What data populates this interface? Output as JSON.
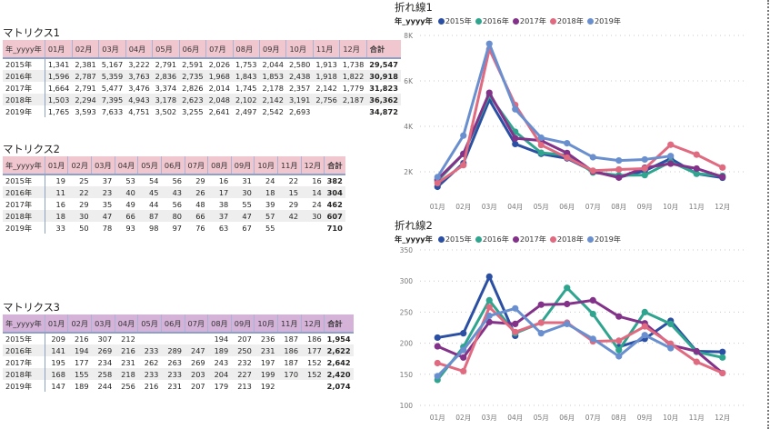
{
  "matrices": [
    {
      "title": "マトリクス1",
      "row_header": "年_yyyy年",
      "columns": [
        "01月",
        "02月",
        "03月",
        "04月",
        "05月",
        "06月",
        "07月",
        "08月",
        "09月",
        "10月",
        "11月",
        "12月",
        "合計"
      ],
      "rows": [
        {
          "label": "2015年",
          "values": [
            "1,341",
            "2,381",
            "5,167",
            "3,222",
            "2,791",
            "2,591",
            "2,026",
            "1,753",
            "2,044",
            "2,580",
            "1,913",
            "1,738"
          ],
          "total": "29,547"
        },
        {
          "label": "2016年",
          "values": [
            "1,596",
            "2,787",
            "5,359",
            "3,763",
            "2,836",
            "2,735",
            "1,968",
            "1,843",
            "1,853",
            "2,438",
            "1,918",
            "1,822"
          ],
          "total": "30,918"
        },
        {
          "label": "2017年",
          "values": [
            "1,664",
            "2,791",
            "5,477",
            "3,476",
            "3,374",
            "2,826",
            "2,014",
            "1,745",
            "2,178",
            "2,357",
            "2,142",
            "1,779"
          ],
          "total": "31,823"
        },
        {
          "label": "2018年",
          "values": [
            "1,503",
            "2,294",
            "7,395",
            "4,943",
            "3,178",
            "2,623",
            "2,048",
            "2,102",
            "2,142",
            "3,191",
            "2,756",
            "2,187"
          ],
          "total": "36,362"
        },
        {
          "label": "2019年",
          "values": [
            "1,765",
            "3,593",
            "7,633",
            "4,751",
            "3,502",
            "3,255",
            "2,641",
            "2,497",
            "2,542",
            "2,693",
            "",
            ""
          ],
          "total": "34,872"
        }
      ]
    },
    {
      "title": "マトリクス2",
      "row_header": "年_yyyy年",
      "columns": [
        "01月",
        "02月",
        "03月",
        "04月",
        "05月",
        "06月",
        "07月",
        "08月",
        "09月",
        "10月",
        "11月",
        "12月",
        "合計"
      ],
      "rows": [
        {
          "label": "2015年",
          "values": [
            "19",
            "25",
            "37",
            "53",
            "54",
            "56",
            "29",
            "16",
            "31",
            "24",
            "22",
            "16"
          ],
          "total": "382"
        },
        {
          "label": "2016年",
          "values": [
            "11",
            "22",
            "23",
            "40",
            "45",
            "43",
            "26",
            "17",
            "30",
            "18",
            "15",
            "14"
          ],
          "total": "304"
        },
        {
          "label": "2017年",
          "values": [
            "16",
            "29",
            "35",
            "49",
            "44",
            "56",
            "48",
            "38",
            "55",
            "39",
            "29",
            "24"
          ],
          "total": "462"
        },
        {
          "label": "2018年",
          "values": [
            "18",
            "30",
            "47",
            "66",
            "87",
            "80",
            "66",
            "37",
            "47",
            "57",
            "42",
            "30"
          ],
          "total": "607"
        },
        {
          "label": "2019年",
          "values": [
            "33",
            "50",
            "78",
            "93",
            "98",
            "97",
            "76",
            "63",
            "67",
            "55",
            "",
            ""
          ],
          "total": "710"
        }
      ]
    },
    {
      "title": "マトリクス3",
      "row_header": "年_yyyy年",
      "columns": [
        "01月",
        "02月",
        "03月",
        "04月",
        "05月",
        "06月",
        "07月",
        "08月",
        "09月",
        "10月",
        "11月",
        "12月",
        "合計"
      ],
      "rows": [
        {
          "label": "2015年",
          "values": [
            "209",
            "216",
            "307",
            "212",
            "",
            "",
            "",
            "194",
            "207",
            "236",
            "187",
            "186"
          ],
          "total": "1,954"
        },
        {
          "label": "2016年",
          "values": [
            "141",
            "194",
            "269",
            "216",
            "233",
            "289",
            "247",
            "189",
            "250",
            "231",
            "186",
            "177"
          ],
          "total": "2,622"
        },
        {
          "label": "2017年",
          "values": [
            "195",
            "177",
            "234",
            "231",
            "262",
            "263",
            "269",
            "243",
            "232",
            "197",
            "187",
            "152"
          ],
          "total": "2,642"
        },
        {
          "label": "2018年",
          "values": [
            "168",
            "155",
            "258",
            "218",
            "233",
            "233",
            "203",
            "204",
            "227",
            "199",
            "170",
            "152"
          ],
          "total": "2,420"
        },
        {
          "label": "2019年",
          "values": [
            "147",
            "189",
            "244",
            "256",
            "216",
            "231",
            "207",
            "179",
            "213",
            "192",
            "",
            ""
          ],
          "total": "2,074"
        }
      ]
    }
  ],
  "chart_data": [
    {
      "type": "line",
      "title": "折れ線1",
      "legend_title": "年_yyyy年",
      "legend_position": "top-left",
      "categories": [
        "01月",
        "02月",
        "03月",
        "04月",
        "05月",
        "06月",
        "07月",
        "08月",
        "09月",
        "10月",
        "11月",
        "12月"
      ],
      "ylim": [
        1000,
        8000
      ],
      "yticks": [
        2000,
        4000,
        6000,
        8000
      ],
      "ytick_labels": [
        "2K",
        "4K",
        "6K",
        "8K"
      ],
      "grid": true,
      "series": [
        {
          "name": "2015年",
          "color": "#2b4fa2",
          "values": [
            1341,
            2381,
            5167,
            3222,
            2791,
            2591,
            2026,
            1753,
            2044,
            2580,
            1913,
            1738
          ]
        },
        {
          "name": "2016年",
          "color": "#2fa48e",
          "values": [
            1596,
            2787,
            5359,
            3763,
            2836,
            2735,
            1968,
            1843,
            1853,
            2438,
            1918,
            1822
          ]
        },
        {
          "name": "2017年",
          "color": "#833289",
          "values": [
            1664,
            2791,
            5477,
            3476,
            3374,
            2826,
            2014,
            1745,
            2178,
            2357,
            2142,
            1779
          ]
        },
        {
          "name": "2018年",
          "color": "#e06a80",
          "values": [
            1503,
            2294,
            7395,
            4943,
            3178,
            2623,
            2048,
            2102,
            2142,
            3191,
            2756,
            2187
          ]
        },
        {
          "name": "2019年",
          "color": "#6a8fcf",
          "values": [
            1765,
            3593,
            7633,
            4751,
            3502,
            3255,
            2641,
            2497,
            2542,
            2693,
            null,
            null
          ]
        }
      ]
    },
    {
      "type": "line",
      "title": "折れ線2",
      "legend_title": "年_yyyy年",
      "legend_position": "top-left",
      "categories": [
        "01月",
        "02月",
        "03月",
        "04月",
        "05月",
        "06月",
        "07月",
        "08月",
        "09月",
        "10月",
        "11月",
        "12月"
      ],
      "ylim": [
        100,
        350
      ],
      "yticks": [
        100,
        150,
        200,
        250,
        300,
        350
      ],
      "ytick_labels": [
        "100",
        "150",
        "200",
        "250",
        "300",
        "350"
      ],
      "grid": true,
      "series": [
        {
          "name": "2015年",
          "color": "#2b4fa2",
          "values": [
            209,
            216,
            307,
            212,
            null,
            null,
            null,
            194,
            207,
            236,
            187,
            186
          ]
        },
        {
          "name": "2016年",
          "color": "#2fa48e",
          "values": [
            141,
            194,
            269,
            216,
            233,
            289,
            247,
            189,
            250,
            231,
            186,
            177
          ]
        },
        {
          "name": "2017年",
          "color": "#833289",
          "values": [
            195,
            177,
            234,
            231,
            262,
            263,
            269,
            243,
            232,
            197,
            187,
            152
          ]
        },
        {
          "name": "2018年",
          "color": "#e06a80",
          "values": [
            168,
            155,
            258,
            218,
            233,
            233,
            203,
            204,
            227,
            199,
            170,
            152
          ]
        },
        {
          "name": "2019年",
          "color": "#6a8fcf",
          "values": [
            147,
            189,
            244,
            256,
            216,
            231,
            207,
            179,
            213,
            192,
            null,
            null
          ]
        }
      ]
    }
  ]
}
